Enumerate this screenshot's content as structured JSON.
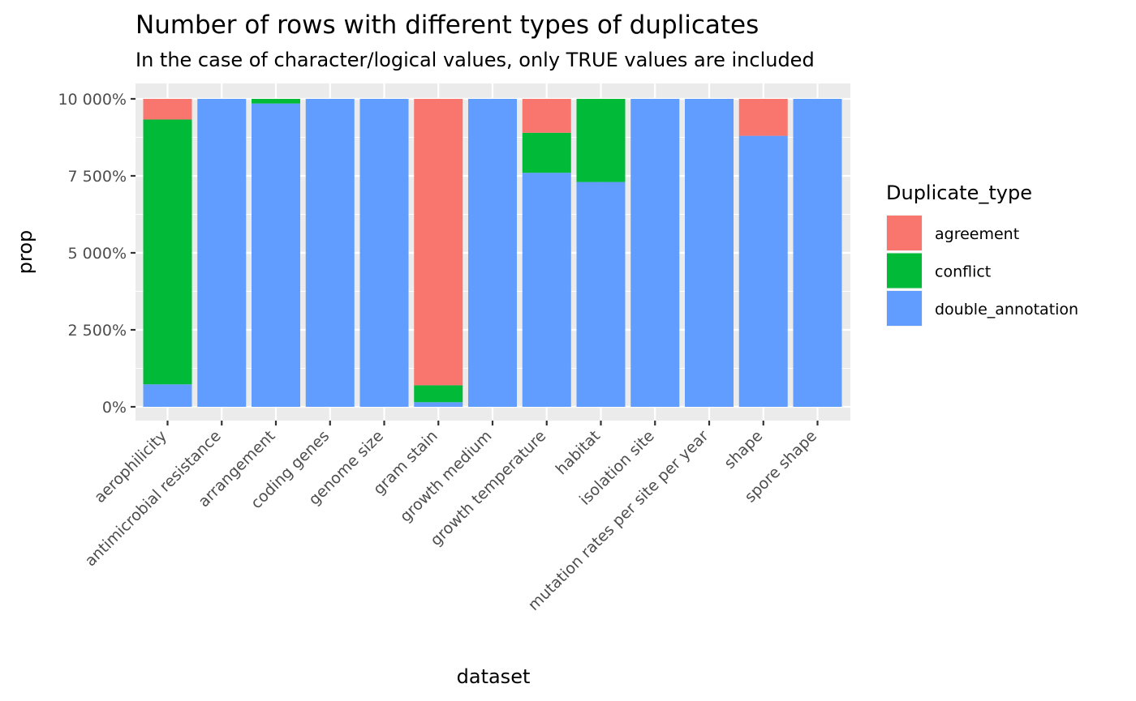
{
  "chart_data": {
    "type": "bar",
    "stacked": true,
    "title": "Number of rows with different types of duplicates",
    "subtitle": "In the case of character/logical values, only TRUE values are included",
    "xlabel": "dataset",
    "ylabel": "prop",
    "ylim": [
      0,
      100
    ],
    "yticks": [
      0,
      25,
      50,
      75,
      100
    ],
    "ytick_labels": [
      "0%",
      "2 500%",
      "5 000%",
      "7 500%",
      "10 000%"
    ],
    "grid": true,
    "legend_position": "right",
    "legend_title": "Duplicate_type",
    "categories": [
      "aerophilicity",
      "antimicrobial resistance",
      "arrangement",
      "coding genes",
      "genome size",
      "gram stain",
      "growth medium",
      "growth temperature",
      "habitat",
      "isolation site",
      "mutation rates per site per year",
      "shape",
      "spore shape"
    ],
    "series": [
      {
        "name": "double_annotation",
        "color": "#619CFF",
        "values": [
          7.3,
          100,
          98.5,
          100,
          100,
          1.5,
          100,
          76,
          73,
          100,
          100,
          88,
          100
        ]
      },
      {
        "name": "conflict",
        "color": "#00BA38",
        "values": [
          86,
          0,
          1.5,
          0,
          0,
          5.5,
          0,
          13,
          27,
          0,
          0,
          0,
          0
        ]
      },
      {
        "name": "agreement",
        "color": "#F8766D",
        "values": [
          6.7,
          0,
          0,
          0,
          0,
          93,
          0,
          11,
          0,
          0,
          0,
          12,
          0
        ]
      }
    ],
    "legend_order": [
      "agreement",
      "conflict",
      "double_annotation"
    ]
  }
}
